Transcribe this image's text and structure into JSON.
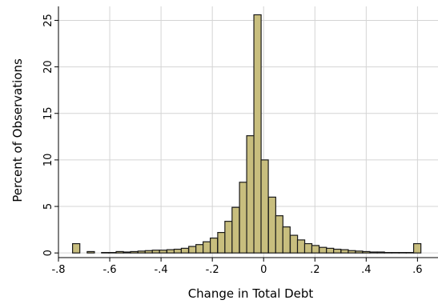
{
  "chart_data": {
    "type": "bar",
    "xlabel": "Change in Total Debt",
    "ylabel": "Percent of Observations",
    "xlim": [
      -0.8,
      0.68
    ],
    "ylim": [
      -0.5,
      26.5
    ],
    "grid": true,
    "bar_color": "#c8be7e",
    "edge_color": "#1a1a1a",
    "x_ticks": [
      {
        "value": -0.8,
        "label": "-.8"
      },
      {
        "value": -0.6,
        "label": "-.6"
      },
      {
        "value": -0.4,
        "label": "-.4"
      },
      {
        "value": -0.2,
        "label": "-.2"
      },
      {
        "value": 0,
        "label": "0"
      },
      {
        "value": 0.2,
        "label": ".2"
      },
      {
        "value": 0.4,
        "label": ".4"
      },
      {
        "value": 0.6,
        "label": ".6"
      }
    ],
    "y_ticks": [
      {
        "value": 0,
        "label": "0"
      },
      {
        "value": 5,
        "label": "5"
      },
      {
        "value": 10,
        "label": "10"
      },
      {
        "value": 15,
        "label": "15"
      },
      {
        "value": 20,
        "label": "20"
      },
      {
        "value": 25,
        "label": "25"
      }
    ],
    "bin_width": 0.0283,
    "bins": [
      {
        "x": -0.745,
        "value": 1.0
      },
      {
        "x": -0.717,
        "value": 0.0
      },
      {
        "x": -0.688,
        "value": 0.15
      },
      {
        "x": -0.66,
        "value": 0.0
      },
      {
        "x": -0.632,
        "value": 0.05
      },
      {
        "x": -0.604,
        "value": 0.05
      },
      {
        "x": -0.575,
        "value": 0.15
      },
      {
        "x": -0.547,
        "value": 0.1
      },
      {
        "x": -0.519,
        "value": 0.15
      },
      {
        "x": -0.49,
        "value": 0.2
      },
      {
        "x": -0.462,
        "value": 0.25
      },
      {
        "x": -0.434,
        "value": 0.3
      },
      {
        "x": -0.406,
        "value": 0.3
      },
      {
        "x": -0.377,
        "value": 0.35
      },
      {
        "x": -0.349,
        "value": 0.4
      },
      {
        "x": -0.321,
        "value": 0.5
      },
      {
        "x": -0.292,
        "value": 0.7
      },
      {
        "x": -0.264,
        "value": 0.9
      },
      {
        "x": -0.236,
        "value": 1.2
      },
      {
        "x": -0.208,
        "value": 1.6
      },
      {
        "x": -0.179,
        "value": 2.2
      },
      {
        "x": -0.151,
        "value": 3.4
      },
      {
        "x": -0.123,
        "value": 4.9
      },
      {
        "x": -0.094,
        "value": 7.6
      },
      {
        "x": -0.066,
        "value": 12.6
      },
      {
        "x": -0.038,
        "value": 25.6
      },
      {
        "x": -0.01,
        "value": 10.0
      },
      {
        "x": 0.019,
        "value": 6.0
      },
      {
        "x": 0.047,
        "value": 4.0
      },
      {
        "x": 0.075,
        "value": 2.8
      },
      {
        "x": 0.104,
        "value": 1.9
      },
      {
        "x": 0.132,
        "value": 1.4
      },
      {
        "x": 0.16,
        "value": 1.0
      },
      {
        "x": 0.188,
        "value": 0.8
      },
      {
        "x": 0.217,
        "value": 0.6
      },
      {
        "x": 0.245,
        "value": 0.5
      },
      {
        "x": 0.273,
        "value": 0.4
      },
      {
        "x": 0.302,
        "value": 0.35
      },
      {
        "x": 0.33,
        "value": 0.25
      },
      {
        "x": 0.358,
        "value": 0.2
      },
      {
        "x": 0.386,
        "value": 0.15
      },
      {
        "x": 0.415,
        "value": 0.1
      },
      {
        "x": 0.443,
        "value": 0.1
      },
      {
        "x": 0.471,
        "value": 0.05
      },
      {
        "x": 0.5,
        "value": 0.05
      },
      {
        "x": 0.528,
        "value": 0.05
      },
      {
        "x": 0.556,
        "value": 0.05
      },
      {
        "x": 0.585,
        "value": 1.0
      }
    ]
  }
}
